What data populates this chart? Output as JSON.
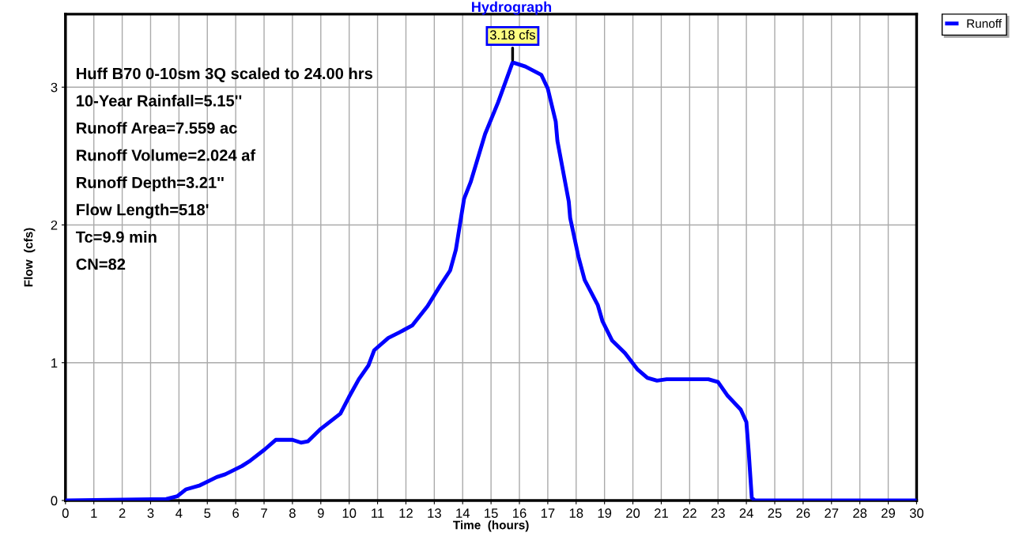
{
  "chart_data": {
    "type": "line",
    "title": "Hydrograph",
    "xlabel": "Time  (hours)",
    "ylabel": "Flow  (cfs)",
    "xlim": [
      0,
      30
    ],
    "xticks": [
      0,
      1,
      2,
      3,
      4,
      5,
      6,
      7,
      8,
      9,
      10,
      11,
      12,
      13,
      14,
      15,
      16,
      17,
      18,
      19,
      20,
      21,
      22,
      23,
      24,
      25,
      26,
      27,
      28,
      29,
      30
    ],
    "ylim": [
      0,
      3.53
    ],
    "yticks": [
      0,
      1,
      2,
      3
    ],
    "grid": true,
    "legend": "top right",
    "line_style": "solid",
    "marker": "none",
    "series": [
      {
        "name": "Runoff",
        "color": "#0000ff",
        "x": [
          0,
          3.55,
          3.94,
          4.24,
          4.74,
          5.33,
          5.63,
          6.22,
          6.52,
          7.02,
          7.41,
          8.0,
          8.3,
          8.55,
          9.0,
          9.69,
          9.99,
          10.34,
          10.68,
          10.88,
          11.38,
          11.77,
          12.22,
          12.76,
          13.21,
          13.56,
          13.76,
          14.05,
          14.28,
          14.79,
          15.25,
          15.76,
          16.21,
          16.77,
          17.0,
          17.28,
          17.34,
          17.74,
          17.79,
          18.08,
          18.3,
          18.76,
          18.93,
          19.27,
          19.72,
          20.17,
          20.51,
          20.85,
          21.19,
          22.66,
          23.0,
          23.34,
          23.8,
          24.0,
          24.08,
          24.19,
          24.3,
          30
        ],
        "values": [
          0,
          0.01,
          0.03,
          0.08,
          0.11,
          0.17,
          0.19,
          0.25,
          0.29,
          0.37,
          0.44,
          0.44,
          0.42,
          0.43,
          0.52,
          0.63,
          0.75,
          0.88,
          0.98,
          1.09,
          1.18,
          1.22,
          1.27,
          1.41,
          1.56,
          1.67,
          1.82,
          2.19,
          2.31,
          2.66,
          2.89,
          3.18,
          3.15,
          3.09,
          2.99,
          2.75,
          2.61,
          2.17,
          2.05,
          1.77,
          1.6,
          1.42,
          1.3,
          1.16,
          1.07,
          0.95,
          0.89,
          0.87,
          0.88,
          0.88,
          0.86,
          0.76,
          0.66,
          0.57,
          0.36,
          0.02,
          0,
          0
        ]
      }
    ],
    "annotations": [
      {
        "text": "3.18 cfs",
        "x": 15.76,
        "y": 3.18
      },
      "Huff B70 0-10sm 3Q scaled to 24.00 hrs",
      "10-Year Rainfall=5.15''",
      "Runoff Area=7.559 ac",
      "Runoff Volume=2.024 af",
      "Runoff Depth=3.21''",
      "Flow Length=518'",
      "Tc=9.9 min",
      "CN=82"
    ]
  }
}
